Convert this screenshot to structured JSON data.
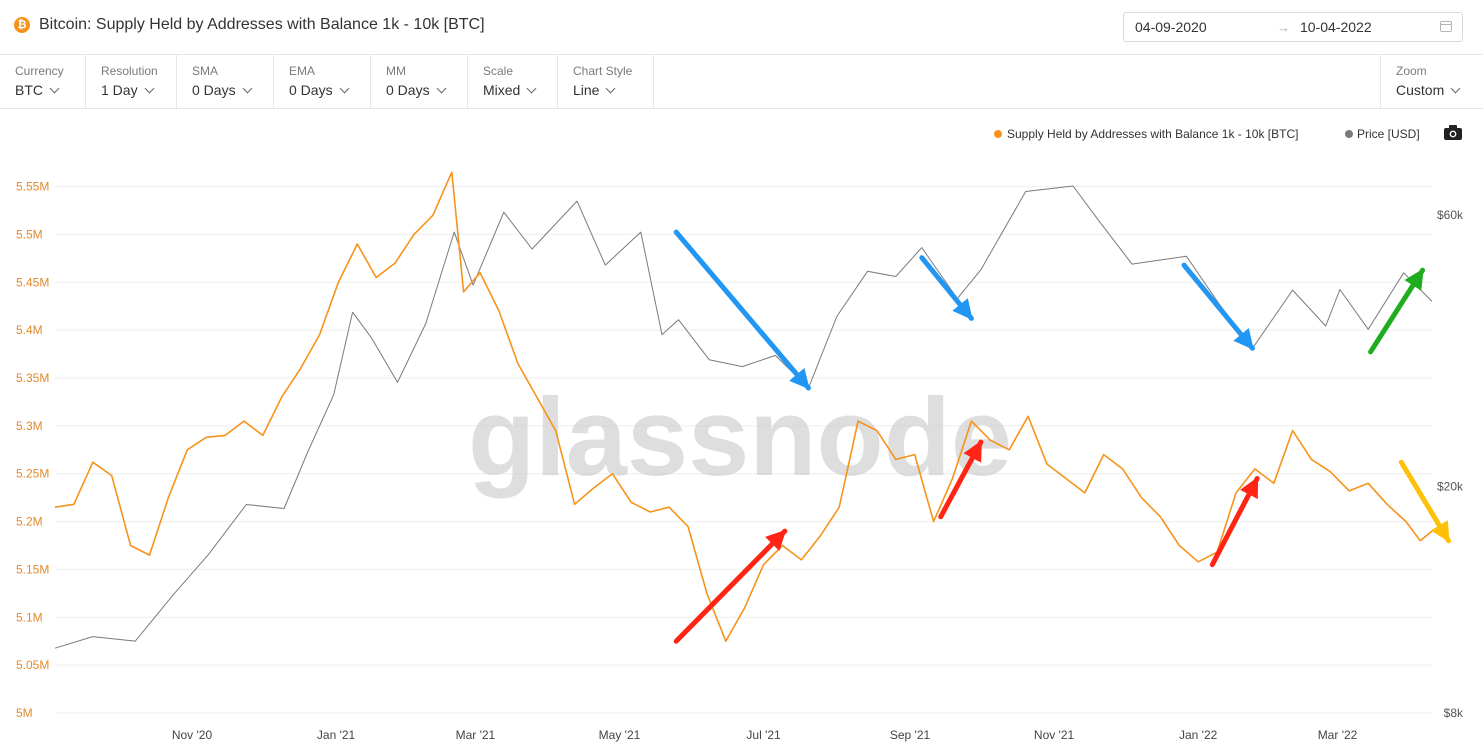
{
  "header": {
    "title": "Bitcoin: Supply Held by Addresses with Balance 1k - 10k [BTC]",
    "asset_icon": "bitcoin-icon",
    "date_start": "04-09-2020",
    "date_end": "10-04-2022",
    "date_arrow": "→",
    "calendar_icon": "calendar-icon"
  },
  "controls": [
    {
      "label": "Currency",
      "value": "BTC"
    },
    {
      "label": "Resolution",
      "value": "1 Day"
    },
    {
      "label": "SMA",
      "value": "0 Days"
    },
    {
      "label": "EMA",
      "value": "0 Days"
    },
    {
      "label": "MM",
      "value": "0 Days"
    },
    {
      "label": "Scale",
      "value": "Mixed"
    },
    {
      "label": "Chart Style",
      "value": "Line"
    }
  ],
  "zoom": {
    "label": "Zoom",
    "value": "Custom"
  },
  "chart_data": {
    "type": "line",
    "watermark": "glassnode",
    "legend": [
      {
        "name": "Supply Held by Addresses with Balance 1k - 10k [BTC]",
        "color": "#f7931a"
      },
      {
        "name": "Price [USD]",
        "color": "#7a7a7a"
      }
    ],
    "camera_icon": "camera-icon",
    "left_axis": {
      "ticks": [
        "5M",
        "5.05M",
        "5.1M",
        "5.15M",
        "5.2M",
        "5.25M",
        "5.3M",
        "5.35M",
        "5.4M",
        "5.45M",
        "5.5M",
        "5.55M"
      ],
      "ylim": [
        5000000,
        5560000
      ]
    },
    "right_axis": {
      "ticks": [
        "$8k",
        "$20k",
        "$60k"
      ],
      "scale": "log",
      "ylim": [
        8000,
        70000
      ]
    },
    "x_ticks": [
      "Nov '20",
      "Jan '21",
      "Mar '21",
      "May '21",
      "Jul '21",
      "Sep '21",
      "Nov '21",
      "Jan '22",
      "Mar '22"
    ],
    "xlim": [
      "2020-09-04",
      "2022-04-10"
    ],
    "series": [
      {
        "name": "Supply Held by Addresses with Balance 1k - 10k [BTC]",
        "axis": "left",
        "color": "#f7931a",
        "points": [
          [
            "2020-09-04",
            5215000
          ],
          [
            "2020-09-12",
            5218000
          ],
          [
            "2020-09-20",
            5262000
          ],
          [
            "2020-09-28",
            5248000
          ],
          [
            "2020-10-06",
            5175000
          ],
          [
            "2020-10-14",
            5165000
          ],
          [
            "2020-10-22",
            5225000
          ],
          [
            "2020-10-30",
            5275000
          ],
          [
            "2020-11-07",
            5288000
          ],
          [
            "2020-11-15",
            5290000
          ],
          [
            "2020-11-23",
            5305000
          ],
          [
            "2020-12-01",
            5290000
          ],
          [
            "2020-12-09",
            5330000
          ],
          [
            "2020-12-17",
            5360000
          ],
          [
            "2020-12-25",
            5395000
          ],
          [
            "2021-01-02",
            5450000
          ],
          [
            "2021-01-10",
            5490000
          ],
          [
            "2021-01-18",
            5455000
          ],
          [
            "2021-01-26",
            5470000
          ],
          [
            "2021-02-03",
            5500000
          ],
          [
            "2021-02-11",
            5520000
          ],
          [
            "2021-02-19",
            5565000
          ],
          [
            "2021-02-24",
            5440000
          ],
          [
            "2021-03-03",
            5460000
          ],
          [
            "2021-03-11",
            5420000
          ],
          [
            "2021-03-19",
            5365000
          ],
          [
            "2021-03-27",
            5330000
          ],
          [
            "2021-04-04",
            5295000
          ],
          [
            "2021-04-12",
            5218000
          ],
          [
            "2021-04-20",
            5235000
          ],
          [
            "2021-04-28",
            5250000
          ],
          [
            "2021-05-06",
            5220000
          ],
          [
            "2021-05-14",
            5210000
          ],
          [
            "2021-05-22",
            5215000
          ],
          [
            "2021-05-30",
            5195000
          ],
          [
            "2021-06-07",
            5125000
          ],
          [
            "2021-06-15",
            5075000
          ],
          [
            "2021-06-23",
            5110000
          ],
          [
            "2021-07-01",
            5155000
          ],
          [
            "2021-07-09",
            5175000
          ],
          [
            "2021-07-17",
            5160000
          ],
          [
            "2021-07-25",
            5185000
          ],
          [
            "2021-08-02",
            5215000
          ],
          [
            "2021-08-10",
            5305000
          ],
          [
            "2021-08-18",
            5295000
          ],
          [
            "2021-08-26",
            5265000
          ],
          [
            "2021-09-03",
            5270000
          ],
          [
            "2021-09-11",
            5200000
          ],
          [
            "2021-09-19",
            5245000
          ],
          [
            "2021-09-27",
            5305000
          ],
          [
            "2021-10-05",
            5285000
          ],
          [
            "2021-10-13",
            5275000
          ],
          [
            "2021-10-21",
            5310000
          ],
          [
            "2021-10-29",
            5260000
          ],
          [
            "2021-11-06",
            5245000
          ],
          [
            "2021-11-14",
            5230000
          ],
          [
            "2021-11-22",
            5270000
          ],
          [
            "2021-11-30",
            5255000
          ],
          [
            "2021-12-08",
            5225000
          ],
          [
            "2021-12-16",
            5205000
          ],
          [
            "2021-12-24",
            5175000
          ],
          [
            "2022-01-01",
            5158000
          ],
          [
            "2022-01-09",
            5168000
          ],
          [
            "2022-01-17",
            5230000
          ],
          [
            "2022-01-25",
            5255000
          ],
          [
            "2022-02-02",
            5240000
          ],
          [
            "2022-02-10",
            5295000
          ],
          [
            "2022-02-18",
            5265000
          ],
          [
            "2022-02-26",
            5252000
          ],
          [
            "2022-03-06",
            5232000
          ],
          [
            "2022-03-14",
            5240000
          ],
          [
            "2022-03-22",
            5218000
          ],
          [
            "2022-03-30",
            5200000
          ],
          [
            "2022-04-05",
            5180000
          ],
          [
            "2022-04-10",
            5190000
          ]
        ]
      },
      {
        "name": "Price [USD]",
        "axis": "right",
        "color": "#7a7a7a",
        "points": [
          [
            "2020-09-04",
            10400
          ],
          [
            "2020-09-20",
            10900
          ],
          [
            "2020-10-08",
            10700
          ],
          [
            "2020-10-24",
            12900
          ],
          [
            "2020-11-08",
            15200
          ],
          [
            "2020-11-24",
            18600
          ],
          [
            "2020-12-10",
            18300
          ],
          [
            "2020-12-20",
            23000
          ],
          [
            "2020-12-31",
            29000
          ],
          [
            "2021-01-08",
            40500
          ],
          [
            "2021-01-16",
            36500
          ],
          [
            "2021-01-27",
            30500
          ],
          [
            "2021-02-08",
            38700
          ],
          [
            "2021-02-20",
            56000
          ],
          [
            "2021-02-28",
            45200
          ],
          [
            "2021-03-13",
            60700
          ],
          [
            "2021-03-25",
            52300
          ],
          [
            "2021-04-13",
            63500
          ],
          [
            "2021-04-25",
            49000
          ],
          [
            "2021-05-10",
            56000
          ],
          [
            "2021-05-19",
            37000
          ],
          [
            "2021-05-26",
            39300
          ],
          [
            "2021-06-08",
            33400
          ],
          [
            "2021-06-22",
            32500
          ],
          [
            "2021-07-06",
            34000
          ],
          [
            "2021-07-20",
            29800
          ],
          [
            "2021-08-01",
            39800
          ],
          [
            "2021-08-14",
            47800
          ],
          [
            "2021-08-26",
            46800
          ],
          [
            "2021-09-06",
            52600
          ],
          [
            "2021-09-21",
            42800
          ],
          [
            "2021-10-01",
            48100
          ],
          [
            "2021-10-20",
            66000
          ],
          [
            "2021-11-09",
            67500
          ],
          [
            "2021-11-20",
            58600
          ],
          [
            "2021-12-04",
            49200
          ],
          [
            "2021-12-27",
            50800
          ],
          [
            "2022-01-10",
            41800
          ],
          [
            "2022-01-24",
            35000
          ],
          [
            "2022-02-10",
            44300
          ],
          [
            "2022-02-24",
            38300
          ],
          [
            "2022-03-02",
            44400
          ],
          [
            "2022-03-14",
            37800
          ],
          [
            "2022-03-29",
            47500
          ],
          [
            "2022-04-10",
            42300
          ]
        ]
      }
    ],
    "annotations": [
      {
        "type": "arrow",
        "axis": "right",
        "color": "#2196f3",
        "from": [
          "2021-05-25",
          56000
        ],
        "to": [
          "2021-07-20",
          29800
        ]
      },
      {
        "type": "arrow",
        "axis": "right",
        "color": "#2196f3",
        "from": [
          "2021-09-06",
          50500
        ],
        "to": [
          "2021-09-27",
          39500
        ]
      },
      {
        "type": "arrow",
        "axis": "right",
        "color": "#2196f3",
        "from": [
          "2021-12-26",
          49000
        ],
        "to": [
          "2022-01-24",
          35000
        ]
      },
      {
        "type": "arrow",
        "axis": "right",
        "color": "#1fad1f",
        "from": [
          "2022-03-15",
          34500
        ],
        "to": [
          "2022-04-06",
          48000
        ]
      },
      {
        "type": "arrow",
        "axis": "left",
        "color": "#ff2414",
        "from": [
          "2021-05-25",
          5075000
        ],
        "to": [
          "2021-07-10",
          5190000
        ]
      },
      {
        "type": "arrow",
        "axis": "left",
        "color": "#ff2414",
        "from": [
          "2021-09-14",
          5205000
        ],
        "to": [
          "2021-10-01",
          5283000
        ]
      },
      {
        "type": "arrow",
        "axis": "left",
        "color": "#ff2414",
        "from": [
          "2022-01-07",
          5155000
        ],
        "to": [
          "2022-01-26",
          5245000
        ]
      },
      {
        "type": "arrow",
        "axis": "left",
        "color": "#ffc107",
        "from": [
          "2022-03-28",
          5262000
        ],
        "to": [
          "2022-04-17",
          5180000
        ]
      }
    ]
  }
}
